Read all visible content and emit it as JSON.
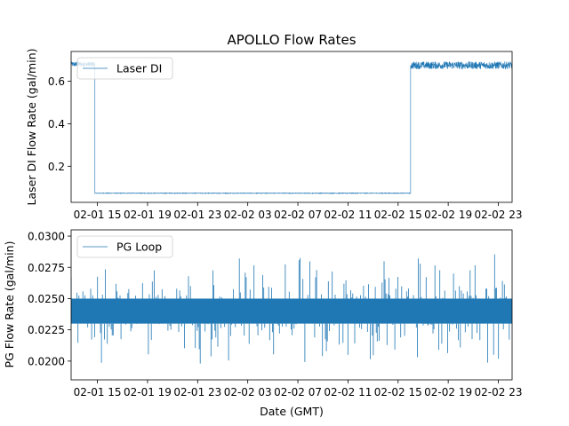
{
  "chart_data": [
    {
      "type": "line",
      "title": "APOLLO Flow Rates",
      "xlabel": "",
      "ylabel": "Laser DI Flow Rate (gal/min)",
      "x_tick_labels": [
        "02-01 15",
        "02-01 19",
        "02-01 23",
        "02-02 03",
        "02-02 07",
        "02-02 11",
        "02-02 15",
        "02-02 19",
        "02-02 23"
      ],
      "x_tick_hours": [
        15,
        19,
        23,
        27,
        31,
        35,
        39,
        43,
        47
      ],
      "xlim_hours": [
        12.9,
        48.1
      ],
      "y_ticks": [
        "0.2",
        "0.4",
        "0.6"
      ],
      "y_tick_values": [
        0.2,
        0.4,
        0.6
      ],
      "ylim": [
        0.03,
        0.74
      ],
      "series": [
        {
          "name": "Laser DI",
          "color": "#1f77b4",
          "segments": [
            {
              "from_hour": 12.9,
              "to_hour": 14.8,
              "value": 0.68,
              "noise": 0.012
            },
            {
              "from_hour": 14.8,
              "to_hour": 40.0,
              "value": 0.073,
              "noise": 0.0015
            },
            {
              "from_hour": 40.0,
              "to_hour": 48.1,
              "value": 0.675,
              "noise": 0.018
            }
          ]
        }
      ],
      "legend": "upper-left"
    },
    {
      "type": "line",
      "title": "",
      "xlabel": "Date (GMT)",
      "ylabel": "PG Flow Rate (gal/min)",
      "x_tick_labels": [
        "02-01 15",
        "02-01 19",
        "02-01 23",
        "02-02 03",
        "02-02 07",
        "02-02 11",
        "02-02 15",
        "02-02 19",
        "02-02 23"
      ],
      "x_tick_hours": [
        15,
        19,
        23,
        27,
        31,
        35,
        39,
        43,
        47
      ],
      "xlim_hours": [
        12.9,
        48.1
      ],
      "y_ticks": [
        "0.0200",
        "0.0225",
        "0.0250",
        "0.0275",
        "0.0300"
      ],
      "y_tick_values": [
        0.02,
        0.0225,
        0.025,
        0.0275,
        0.03
      ],
      "ylim": [
        0.0185,
        0.0305
      ],
      "series": [
        {
          "name": "PG Loop",
          "color": "#1f77b4",
          "band_low": 0.023,
          "band_high": 0.025,
          "spike_min": 0.019,
          "spike_max": 0.029
        }
      ],
      "legend": "upper-left"
    }
  ]
}
